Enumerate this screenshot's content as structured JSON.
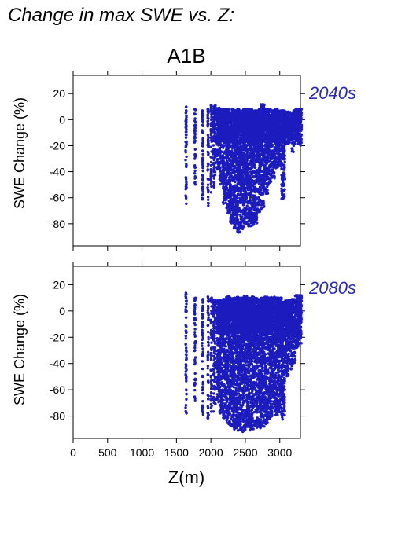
{
  "title": "Change in max SWE vs. Z:",
  "scenario": "A1B",
  "xlabel": "Z(m)",
  "ylabel": "SWE Change (%)",
  "colors": {
    "points": "#1c1cbe",
    "period": "#2a2ab0",
    "axis": "#000000"
  },
  "chart_data": [
    {
      "type": "scatter",
      "title": "2040s",
      "xlim": [
        0,
        3300
      ],
      "ylim": [
        -97,
        34
      ],
      "xticks": [
        0,
        500,
        1000,
        1500,
        2000,
        2500,
        3000
      ],
      "yticks": [
        20,
        0,
        -20,
        -40,
        -60,
        -80
      ],
      "grid": false,
      "columns": [
        {
          "x": 1640,
          "min": -65,
          "max": 10
        },
        {
          "x": 1770,
          "min": -50,
          "max": 8
        },
        {
          "x": 1880,
          "min": -62,
          "max": 7
        },
        {
          "x": 1960,
          "min": -68,
          "max": 9
        },
        {
          "x": 2005,
          "min": -58,
          "max": 11
        },
        {
          "x": 2040,
          "min": -52,
          "max": 10
        },
        {
          "x": 2060,
          "min": -45,
          "max": 11
        },
        {
          "x": 2110,
          "min": -40,
          "max": 9
        },
        {
          "x": 2150,
          "min": -50,
          "max": 8
        },
        {
          "x": 2200,
          "min": -65,
          "max": 8
        },
        {
          "x": 2250,
          "min": -72,
          "max": 8
        },
        {
          "x": 2300,
          "min": -80,
          "max": 8
        },
        {
          "x": 2350,
          "min": -84,
          "max": 7
        },
        {
          "x": 2400,
          "min": -87,
          "max": 8
        },
        {
          "x": 2450,
          "min": -84,
          "max": 7
        },
        {
          "x": 2500,
          "min": -80,
          "max": 8
        },
        {
          "x": 2550,
          "min": -82,
          "max": 8
        },
        {
          "x": 2600,
          "min": -82,
          "max": 8
        },
        {
          "x": 2650,
          "min": -80,
          "max": 7
        },
        {
          "x": 2700,
          "min": -72,
          "max": 8
        },
        {
          "x": 2750,
          "min": -68,
          "max": 12
        },
        {
          "x": 2800,
          "min": -58,
          "max": 8
        },
        {
          "x": 2850,
          "min": -50,
          "max": 8
        },
        {
          "x": 2900,
          "min": -45,
          "max": 7
        },
        {
          "x": 2950,
          "min": -38,
          "max": 8
        },
        {
          "x": 3000,
          "min": -35,
          "max": 7
        },
        {
          "x": 3050,
          "min": -62,
          "max": 7
        },
        {
          "x": 3100,
          "min": -22,
          "max": 6
        },
        {
          "x": 3150,
          "min": -18,
          "max": 6
        },
        {
          "x": 3200,
          "min": -25,
          "max": 7
        },
        {
          "x": 3250,
          "min": -15,
          "max": 8
        },
        {
          "x": 3290,
          "min": -20,
          "max": 8
        }
      ]
    },
    {
      "type": "scatter",
      "title": "2080s",
      "xlim": [
        0,
        3300
      ],
      "ylim": [
        -97,
        34
      ],
      "xticks": [
        0,
        500,
        1000,
        1500,
        2000,
        2500,
        3000
      ],
      "xticklabels": [
        "0",
        "500",
        "1000",
        "1500",
        "2000",
        "2500",
        "3000"
      ],
      "yticks": [
        20,
        0,
        -20,
        -40,
        -60,
        -80
      ],
      "grid": false,
      "columns": [
        {
          "x": 1640,
          "min": -82,
          "max": 15
        },
        {
          "x": 1770,
          "min": -75,
          "max": 10
        },
        {
          "x": 1880,
          "min": -80,
          "max": 9
        },
        {
          "x": 1960,
          "min": -85,
          "max": 11
        },
        {
          "x": 2005,
          "min": -80,
          "max": 10
        },
        {
          "x": 2040,
          "min": -78,
          "max": 10
        },
        {
          "x": 2060,
          "min": -75,
          "max": 9
        },
        {
          "x": 2110,
          "min": -70,
          "max": 8
        },
        {
          "x": 2150,
          "min": -78,
          "max": 8
        },
        {
          "x": 2200,
          "min": -82,
          "max": 9
        },
        {
          "x": 2250,
          "min": -86,
          "max": 11
        },
        {
          "x": 2300,
          "min": -88,
          "max": 10
        },
        {
          "x": 2350,
          "min": -90,
          "max": 10
        },
        {
          "x": 2400,
          "min": -91,
          "max": 11
        },
        {
          "x": 2450,
          "min": -92,
          "max": 10
        },
        {
          "x": 2500,
          "min": -92,
          "max": 11
        },
        {
          "x": 2550,
          "min": -92,
          "max": 10
        },
        {
          "x": 2600,
          "min": -91,
          "max": 11
        },
        {
          "x": 2650,
          "min": -90,
          "max": 10
        },
        {
          "x": 2700,
          "min": -90,
          "max": 9
        },
        {
          "x": 2750,
          "min": -88,
          "max": 10
        },
        {
          "x": 2800,
          "min": -86,
          "max": 11
        },
        {
          "x": 2850,
          "min": -84,
          "max": 10
        },
        {
          "x": 2900,
          "min": -82,
          "max": 11
        },
        {
          "x": 2950,
          "min": -80,
          "max": 10
        },
        {
          "x": 3000,
          "min": -80,
          "max": 10
        },
        {
          "x": 3050,
          "min": -84,
          "max": 7
        },
        {
          "x": 3100,
          "min": -50,
          "max": 8
        },
        {
          "x": 3150,
          "min": -45,
          "max": 8
        },
        {
          "x": 3200,
          "min": -40,
          "max": 9
        },
        {
          "x": 3250,
          "min": -30,
          "max": 12
        },
        {
          "x": 3290,
          "min": -25,
          "max": 12
        }
      ]
    }
  ]
}
